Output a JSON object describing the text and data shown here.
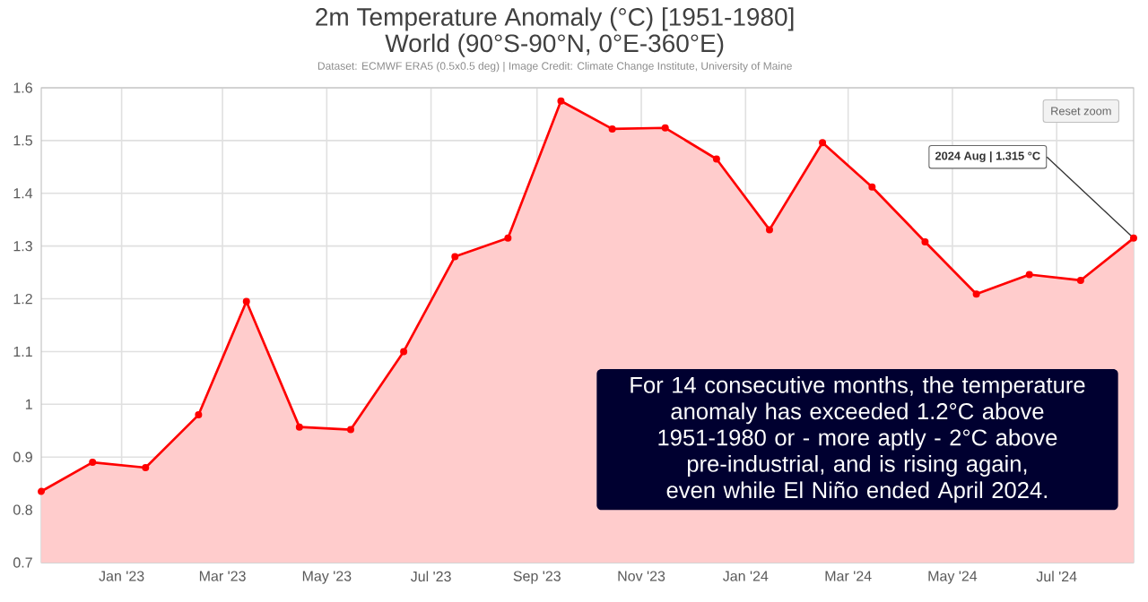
{
  "chart_data": {
    "type": "area",
    "title": "2m Temperature Anomaly (°C) [1951-1980]",
    "subtitle": "World (90°S-90°N, 0°E-360°E)",
    "x": [
      "2022-11-15",
      "2022-12-15",
      "2023-01-15",
      "2023-02-15",
      "2023-03-15",
      "2023-04-15",
      "2023-05-15",
      "2023-06-15",
      "2023-07-15",
      "2023-08-15",
      "2023-09-15",
      "2023-10-15",
      "2023-11-15",
      "2023-12-15",
      "2024-01-15",
      "2024-02-15",
      "2024-03-15",
      "2024-04-15",
      "2024-05-15",
      "2024-06-15",
      "2024-07-15",
      "2024-08-15"
    ],
    "series": [
      {
        "color": "#ff0000",
        "values": [
          0.835,
          0.89,
          0.88,
          0.98,
          1.195,
          0.957,
          0.952,
          1.1,
          1.28,
          1.315,
          1.575,
          1.522,
          1.524,
          1.465,
          1.331,
          1.496,
          1.412,
          1.308,
          1.209,
          1.246,
          1.235,
          1.315
        ]
      }
    ],
    "xlim": [
      "2022-11-15",
      "2024-08-15"
    ],
    "xticks": [
      {
        "value": "2023-01-01",
        "label": "Jan '23"
      },
      {
        "value": "2023-03-01",
        "label": "Mar '23"
      },
      {
        "value": "2023-05-01",
        "label": "May '23"
      },
      {
        "value": "2023-07-01",
        "label": "Jul '23"
      },
      {
        "value": "2023-09-01",
        "label": "Sep '23"
      },
      {
        "value": "2023-11-01",
        "label": "Nov '23"
      },
      {
        "value": "2024-01-01",
        "label": "Jan '24"
      },
      {
        "value": "2024-03-01",
        "label": "Mar '24"
      },
      {
        "value": "2024-05-01",
        "label": "May '24"
      },
      {
        "value": "2024-07-01",
        "label": "Jul '24"
      }
    ],
    "ylim": [
      0.7,
      1.6
    ],
    "yticks": [
      0.7,
      0.8,
      0.9,
      1,
      1.1,
      1.2,
      1.3,
      1.4,
      1.5,
      1.6
    ],
    "grid": true,
    "marker": "circle",
    "annotations": [
      "Dataset: ECMWF ERA5 (0.5x0.5 deg) | Image Credit: Climate Change Institute, University of Maine",
      "Reset zoom",
      "For 14 consecutive months, the temperature anomaly has exceeded 1.2°C above 1951-1980 or - more aptly - 2°C above pre-industrial, and is rising again, even while El Niño ended April 2024.",
      {
        "text": "2024 Aug | 1.315 °C",
        "x": "2024-08-15",
        "y": 1.315
      }
    ]
  }
}
